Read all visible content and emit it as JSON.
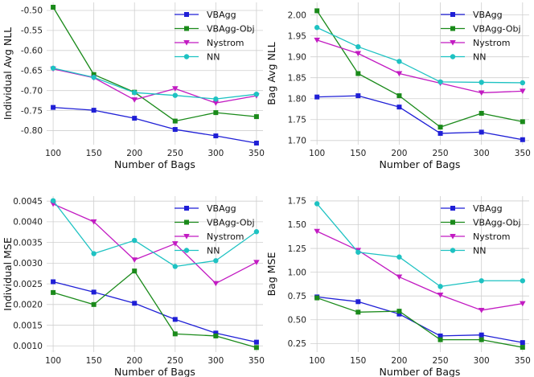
{
  "chart_data": [
    {
      "type": "line",
      "xlabel": "Number of Bags",
      "ylabel": "Individual Avg NLL",
      "x": [
        100,
        150,
        200,
        250,
        300,
        350
      ],
      "ylim": [
        -0.835,
        -0.48
      ],
      "yticks": [
        -0.8,
        -0.75,
        -0.7,
        -0.65,
        -0.6,
        -0.55,
        -0.5
      ],
      "ytick_labels": [
        "-0.80",
        "-0.75",
        "-0.70",
        "-0.65",
        "-0.60",
        "-0.55",
        "-0.50"
      ],
      "grid": true,
      "legend": "top-right",
      "series": [
        {
          "name": "VBAgg",
          "color": "#1f1fd6",
          "marker": "square",
          "values": [
            -0.742,
            -0.749,
            -0.769,
            -0.797,
            -0.813,
            -0.831
          ]
        },
        {
          "name": "VBAgg-Obj",
          "color": "#1a8a1a",
          "marker": "square",
          "values": [
            -0.492,
            -0.66,
            -0.704,
            -0.776,
            -0.755,
            -0.765
          ]
        },
        {
          "name": "Nystrom",
          "color": "#c21bc2",
          "marker": "triangle-down",
          "values": [
            -0.646,
            -0.668,
            -0.723,
            -0.695,
            -0.731,
            -0.713
          ]
        },
        {
          "name": "NN",
          "color": "#1ec2c2",
          "marker": "circle",
          "values": [
            -0.644,
            -0.667,
            -0.705,
            -0.712,
            -0.721,
            -0.709
          ]
        }
      ]
    },
    {
      "type": "line",
      "xlabel": "Number of Bags",
      "ylabel": "Bag Avg NLL",
      "x": [
        100,
        150,
        200,
        250,
        300,
        350
      ],
      "ylim": [
        1.69,
        2.03
      ],
      "yticks": [
        1.7,
        1.75,
        1.8,
        1.85,
        1.9,
        1.95,
        2.0
      ],
      "ytick_labels": [
        "1.70",
        "1.75",
        "1.80",
        "1.85",
        "1.90",
        "1.95",
        "2.00"
      ],
      "grid": true,
      "legend": "top-right",
      "series": [
        {
          "name": "VBAgg",
          "color": "#1f1fd6",
          "marker": "square",
          "values": [
            1.804,
            1.807,
            1.78,
            1.717,
            1.72,
            1.702
          ]
        },
        {
          "name": "VBAgg-Obj",
          "color": "#1a8a1a",
          "marker": "square",
          "values": [
            2.01,
            1.86,
            1.807,
            1.732,
            1.765,
            1.745
          ]
        },
        {
          "name": "Nystrom",
          "color": "#c21bc2",
          "marker": "triangle-down",
          "values": [
            1.94,
            1.908,
            1.86,
            1.837,
            1.814,
            1.818
          ]
        },
        {
          "name": "NN",
          "color": "#1ec2c2",
          "marker": "circle",
          "values": [
            1.97,
            1.924,
            1.889,
            1.84,
            1.839,
            1.838
          ]
        }
      ]
    },
    {
      "type": "line",
      "xlabel": "Number of Bags",
      "ylabel": "Individual MSE",
      "x": [
        100,
        150,
        200,
        250,
        300,
        350
      ],
      "ylim": [
        0.00085,
        0.00462
      ],
      "yticks": [
        0.001,
        0.0015,
        0.002,
        0.0025,
        0.003,
        0.0035,
        0.004,
        0.0045
      ],
      "ytick_labels": [
        "0.0010",
        "0.0015",
        "0.0020",
        "0.0025",
        "0.0030",
        "0.0035",
        "0.0040",
        "0.0045"
      ],
      "grid": true,
      "legend": "top-right",
      "series": [
        {
          "name": "VBAgg",
          "color": "#1f1fd6",
          "marker": "square",
          "values": [
            0.00255,
            0.0023,
            0.00203,
            0.00164,
            0.00131,
            0.00109
          ]
        },
        {
          "name": "VBAgg-Obj",
          "color": "#1a8a1a",
          "marker": "square",
          "values": [
            0.00229,
            0.002,
            0.00281,
            0.00129,
            0.00124,
            0.00096
          ]
        },
        {
          "name": "Nystrom",
          "color": "#c21bc2",
          "marker": "triangle-down",
          "values": [
            0.00443,
            0.004,
            0.00308,
            0.00347,
            0.00251,
            0.00302
          ]
        },
        {
          "name": "NN",
          "color": "#1ec2c2",
          "marker": "circle",
          "values": [
            0.00451,
            0.00323,
            0.00355,
            0.00292,
            0.00306,
            0.00376
          ]
        }
      ]
    },
    {
      "type": "line",
      "xlabel": "Number of Bags",
      "ylabel": "Bag MSE",
      "x": [
        100,
        150,
        200,
        250,
        300,
        350
      ],
      "ylim": [
        0.16,
        1.8
      ],
      "yticks": [
        0.25,
        0.5,
        0.75,
        1.0,
        1.25,
        1.5,
        1.75
      ],
      "ytick_labels": [
        "0.25",
        "0.50",
        "0.75",
        "1.00",
        "1.25",
        "1.50",
        "1.75"
      ],
      "grid": true,
      "legend": "top-right",
      "series": [
        {
          "name": "VBAgg",
          "color": "#1f1fd6",
          "marker": "square",
          "values": [
            0.74,
            0.69,
            0.56,
            0.33,
            0.34,
            0.26
          ]
        },
        {
          "name": "VBAgg-Obj",
          "color": "#1a8a1a",
          "marker": "square",
          "values": [
            0.73,
            0.58,
            0.59,
            0.29,
            0.29,
            0.21
          ]
        },
        {
          "name": "Nystrom",
          "color": "#c21bc2",
          "marker": "triangle-down",
          "values": [
            1.43,
            1.23,
            0.95,
            0.76,
            0.6,
            0.67
          ]
        },
        {
          "name": "NN",
          "color": "#1ec2c2",
          "marker": "circle",
          "values": [
            1.72,
            1.21,
            1.16,
            0.85,
            0.91,
            0.91
          ]
        }
      ]
    }
  ]
}
